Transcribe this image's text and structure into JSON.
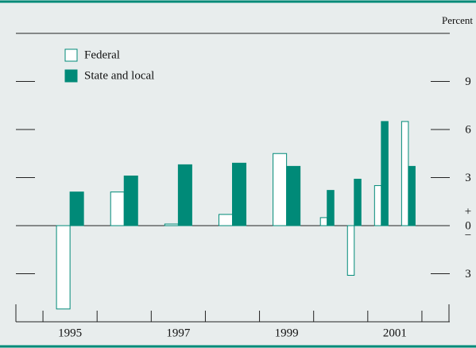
{
  "chart_data": {
    "type": "bar",
    "y_unit_label": "Percent",
    "x": [
      1995,
      1996,
      1997,
      1998,
      1999,
      1999.75,
      2000.25,
      2000.75,
      2001.25
    ],
    "series": [
      {
        "name": "Federal",
        "color": "#ffffff",
        "values": [
          -5.2,
          2.1,
          0.1,
          0.7,
          4.5,
          0.5,
          -3.1,
          2.5,
          6.5
        ]
      },
      {
        "name": "State and local",
        "color": "#008a78",
        "values": [
          2.1,
          3.1,
          3.8,
          3.9,
          3.7,
          2.2,
          2.9,
          6.5,
          3.7
        ]
      }
    ],
    "xlim": [
      1994,
      2002
    ],
    "xticks": [
      1995,
      1997,
      1999,
      2001
    ],
    "xminor_ticks": [
      1994.5,
      1995.5,
      1996.5,
      1997.5,
      1998.5,
      1999.5,
      2000.5,
      2001.5
    ],
    "ylim": [
      -6,
      12
    ],
    "yticks": [
      {
        "value": -3,
        "label": "3"
      },
      0,
      3,
      6,
      9
    ],
    "zero_signs": [
      "+",
      "−"
    ],
    "legend": "upper left"
  }
}
